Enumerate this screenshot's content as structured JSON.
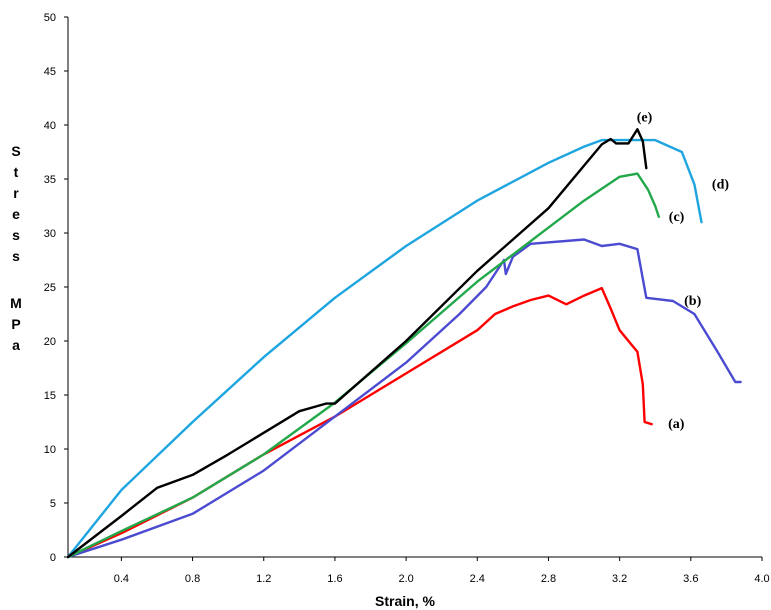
{
  "chart_data": {
    "type": "line",
    "title": "",
    "xlabel": "Strain, %",
    "ylabel": "Stress MPa",
    "xlim": [
      0.1,
      4.0
    ],
    "ylim": [
      0,
      50
    ],
    "x_ticks": [
      "0.4",
      "0.8",
      "1.2",
      "1.6",
      "2.0",
      "2.4",
      "2.8",
      "3.2",
      "3.6",
      "4.0"
    ],
    "y_ticks": [
      "0",
      "5",
      "10",
      "15",
      "20",
      "25",
      "30",
      "35",
      "40",
      "45",
      "50"
    ],
    "grid": false,
    "legend": "none",
    "series": [
      {
        "name": "(a)",
        "color": "#ff0000",
        "points": [
          [
            0.1,
            0
          ],
          [
            0.4,
            2.2
          ],
          [
            0.8,
            5.5
          ],
          [
            1.2,
            9.5
          ],
          [
            1.6,
            13
          ],
          [
            2.0,
            17
          ],
          [
            2.4,
            21
          ],
          [
            2.5,
            22.5
          ],
          [
            2.6,
            23.2
          ],
          [
            2.7,
            23.8
          ],
          [
            2.8,
            24.2
          ],
          [
            2.9,
            23.4
          ],
          [
            3.0,
            24.2
          ],
          [
            3.1,
            24.9
          ],
          [
            3.15,
            23
          ],
          [
            3.2,
            21
          ],
          [
            3.3,
            19
          ],
          [
            3.33,
            16
          ],
          [
            3.34,
            12.5
          ],
          [
            3.38,
            12.3
          ]
        ]
      },
      {
        "name": "(b)",
        "color": "#4b4bd2",
        "points": [
          [
            0.1,
            0
          ],
          [
            0.4,
            1.6
          ],
          [
            0.8,
            4
          ],
          [
            1.2,
            8
          ],
          [
            1.6,
            13
          ],
          [
            2.0,
            18
          ],
          [
            2.3,
            22.5
          ],
          [
            2.45,
            25
          ],
          [
            2.55,
            27.5
          ],
          [
            2.56,
            26.2
          ],
          [
            2.6,
            27.8
          ],
          [
            2.7,
            29
          ],
          [
            3.0,
            29.4
          ],
          [
            3.1,
            28.8
          ],
          [
            3.2,
            29
          ],
          [
            3.3,
            28.5
          ],
          [
            3.35,
            24
          ],
          [
            3.5,
            23.7
          ],
          [
            3.62,
            22.5
          ],
          [
            3.75,
            19
          ],
          [
            3.85,
            16.2
          ],
          [
            3.88,
            16.2
          ]
        ]
      },
      {
        "name": "(c)",
        "color": "#22a84a",
        "points": [
          [
            0.1,
            0
          ],
          [
            0.4,
            2.4
          ],
          [
            0.8,
            5.5
          ],
          [
            1.2,
            9.5
          ],
          [
            1.6,
            14.3
          ],
          [
            2.0,
            19.8
          ],
          [
            2.4,
            25.5
          ],
          [
            2.8,
            30.5
          ],
          [
            3.0,
            33
          ],
          [
            3.2,
            35.2
          ],
          [
            3.3,
            35.5
          ],
          [
            3.36,
            34
          ],
          [
            3.4,
            32.5
          ],
          [
            3.42,
            31.5
          ]
        ]
      },
      {
        "name": "(d)",
        "color": "#1ea5e0",
        "points": [
          [
            0.1,
            0
          ],
          [
            0.4,
            6.2
          ],
          [
            0.8,
            12.5
          ],
          [
            1.2,
            18.5
          ],
          [
            1.6,
            24
          ],
          [
            2.0,
            28.8
          ],
          [
            2.4,
            33
          ],
          [
            2.8,
            36.5
          ],
          [
            3.0,
            38
          ],
          [
            3.1,
            38.6
          ],
          [
            3.4,
            38.6
          ],
          [
            3.55,
            37.5
          ],
          [
            3.62,
            34.5
          ],
          [
            3.66,
            31
          ]
        ]
      },
      {
        "name": "(e)",
        "color": "#000000",
        "points": [
          [
            0.1,
            0
          ],
          [
            0.4,
            3.8
          ],
          [
            0.6,
            6.4
          ],
          [
            0.8,
            7.6
          ],
          [
            1.0,
            9.5
          ],
          [
            1.2,
            11.5
          ],
          [
            1.4,
            13.5
          ],
          [
            1.55,
            14.2
          ],
          [
            1.6,
            14.2
          ],
          [
            2.0,
            20
          ],
          [
            2.4,
            26.5
          ],
          [
            2.8,
            32.3
          ],
          [
            3.1,
            38.2
          ],
          [
            3.15,
            38.7
          ],
          [
            3.18,
            38.3
          ],
          [
            3.25,
            38.3
          ],
          [
            3.3,
            39.6
          ],
          [
            3.33,
            38.5
          ],
          [
            3.35,
            36
          ]
        ]
      }
    ]
  }
}
